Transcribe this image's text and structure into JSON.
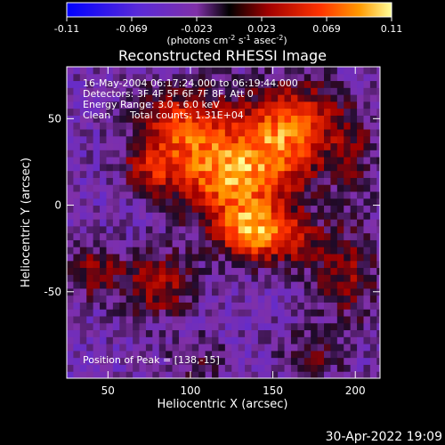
{
  "chart_data": {
    "type": "heatmap",
    "title": "Reconstructed RHESSI Image",
    "xlabel": "Heliocentric X (arcsec)",
    "ylabel": "Heliocentric Y (arcsec)",
    "xlim": [
      25,
      215
    ],
    "ylim": [
      -100,
      80
    ],
    "xticks": [
      50,
      100,
      150,
      200
    ],
    "yticks": [
      -50,
      0,
      50
    ],
    "grid": false,
    "colorbar": {
      "position": "top",
      "min": -0.11,
      "max": 0.11,
      "ticks": [
        "-0.11",
        "-0.069",
        "-0.023",
        "0.023",
        "0.069",
        "0.11"
      ],
      "units_label": "(photons cm",
      "units_exp1": "-2",
      "units_s": " s",
      "units_exp2": "-1",
      "units_asec": " asec",
      "units_exp3": "-2",
      "units_close": ")",
      "colors": [
        "#0000ff",
        "#5a2ad8",
        "#8030a8",
        "#000000",
        "#a00000",
        "#ff3300",
        "#ff9900",
        "#ffff99"
      ]
    },
    "annotations": {
      "time_range": "16-May-2004 06:17:24.000 to 06:19:44.000",
      "detectors": "Detectors: 3F 4F 5F 6F 7F 8F, Att 0",
      "energy": "Energy Range: 3.0 - 6.0 keV",
      "algorithm": "Clean",
      "total_counts": "Total counts: 1.31E+04",
      "peak": "Position of Peak = [138,-15]"
    },
    "peak": {
      "x": 138,
      "y": -15
    },
    "sources": [
      {
        "x": 138,
        "y": -15,
        "sx": 16,
        "sy": 12,
        "amp": 0.11
      },
      {
        "x": 118,
        "y": 15,
        "sx": 22,
        "sy": 16,
        "amp": 0.085
      },
      {
        "x": 95,
        "y": 45,
        "sx": 20,
        "sy": 16,
        "amp": 0.085
      },
      {
        "x": 150,
        "y": 30,
        "sx": 22,
        "sy": 20,
        "amp": 0.075
      },
      {
        "x": 165,
        "y": 50,
        "sx": 20,
        "sy": 16,
        "amp": 0.06
      },
      {
        "x": 75,
        "y": 20,
        "sx": 12,
        "sy": 10,
        "amp": 0.045
      },
      {
        "x": 80,
        "y": -45,
        "sx": 16,
        "sy": 14,
        "amp": 0.06
      },
      {
        "x": 40,
        "y": -38,
        "sx": 11,
        "sy": 10,
        "amp": 0.055
      },
      {
        "x": 195,
        "y": -40,
        "sx": 14,
        "sy": 20,
        "amp": 0.05
      },
      {
        "x": 175,
        "y": -85,
        "sx": 14,
        "sy": 10,
        "amp": 0.035
      },
      {
        "x": 105,
        "y": -90,
        "sx": 12,
        "sy": 10,
        "amp": 0.03
      },
      {
        "x": 200,
        "y": 30,
        "sx": 10,
        "sy": 20,
        "amp": 0.03
      },
      {
        "x": 165,
        "y": -20,
        "sx": 12,
        "sy": 10,
        "amp": 0.04
      }
    ],
    "background": -0.03
  },
  "footer": {
    "timestamp": "30-Apr-2022 19:09"
  }
}
